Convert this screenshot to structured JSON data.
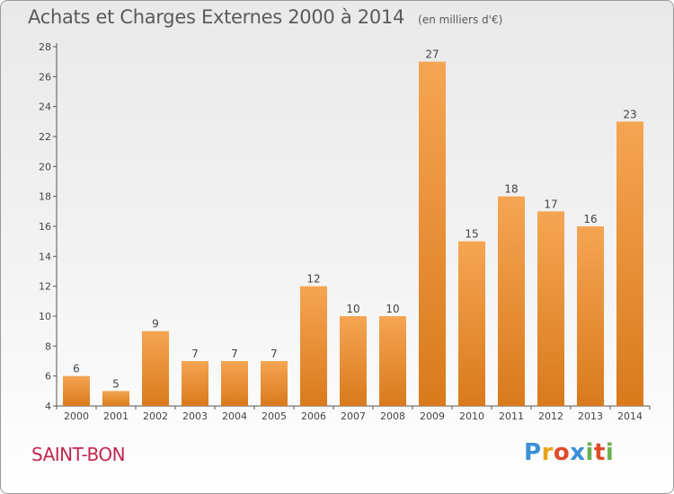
{
  "chart_data": {
    "type": "bar",
    "title": "Achats et Charges Externes 2000 à 2014",
    "unit_label": "(en milliers d'€)",
    "categories": [
      "2000",
      "2001",
      "2002",
      "2003",
      "2004",
      "2005",
      "2006",
      "2007",
      "2008",
      "2009",
      "2010",
      "2011",
      "2012",
      "2013",
      "2014"
    ],
    "values": [
      6,
      5,
      9,
      7,
      7,
      7,
      12,
      10,
      10,
      27,
      15,
      18,
      17,
      16,
      23
    ],
    "ylim": [
      4,
      28
    ],
    "yticks": [
      4,
      6,
      8,
      10,
      12,
      14,
      16,
      18,
      20,
      22,
      24,
      26,
      28
    ],
    "grid": false,
    "legend": "none",
    "bar_color_light": "#f5a552",
    "bar_color_dark": "#d97a1c"
  },
  "commune": "SAINT-BON",
  "brand": {
    "letters": [
      "P",
      "r",
      "o",
      "x",
      "i",
      "t",
      "i"
    ],
    "colors": [
      "#3a8fd6",
      "#e8a21a",
      "#e04a2a",
      "#3a8fd6",
      "#6ab04c",
      "#e04a2a",
      "#6ab04c"
    ]
  }
}
